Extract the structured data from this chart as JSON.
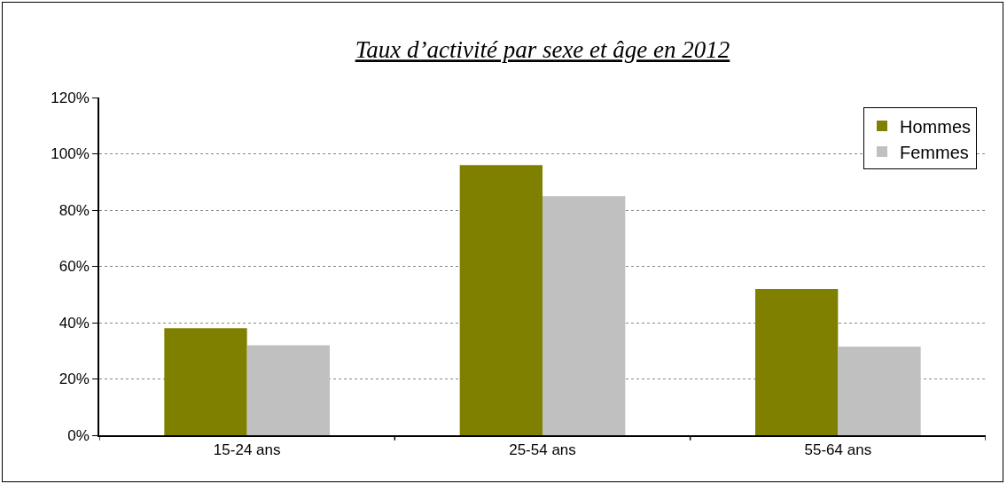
{
  "chart_data": {
    "type": "bar",
    "title": "Taux d’activité par sexe et âge en 2012",
    "categories": [
      "15-24 ans",
      "25-54 ans",
      "55-64 ans"
    ],
    "series": [
      {
        "name": "Hommes",
        "color": "#808000",
        "values": [
          38,
          96,
          52
        ]
      },
      {
        "name": "Femmes",
        "color": "#c0c0c0",
        "values": [
          32,
          85,
          31.5
        ]
      }
    ],
    "ylim": [
      0,
      120
    ],
    "yticks": [
      {
        "value": 0,
        "label": "0%"
      },
      {
        "value": 20,
        "label": "20%"
      },
      {
        "value": 40,
        "label": "40%"
      },
      {
        "value": 60,
        "label": "60%"
      },
      {
        "value": 80,
        "label": "80%"
      },
      {
        "value": 100,
        "label": "100%"
      },
      {
        "value": 120,
        "label": "120%"
      }
    ],
    "grid": "y",
    "legend": "top right"
  }
}
